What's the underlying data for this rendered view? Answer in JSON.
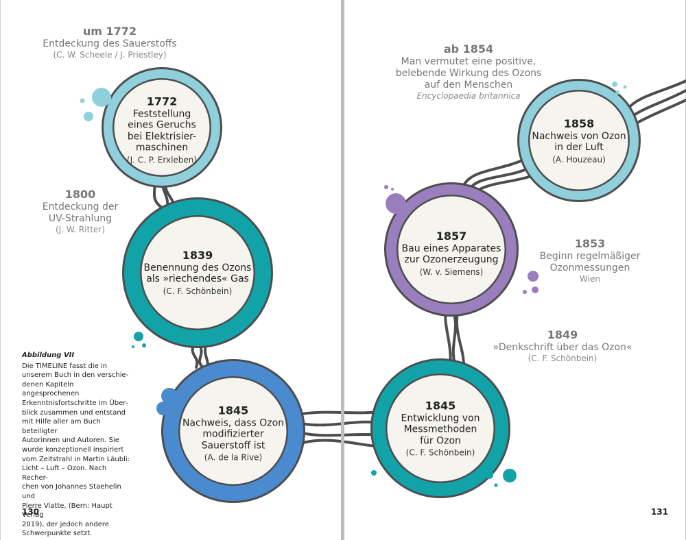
{
  "left_page": {
    "number": "130",
    "caption": {
      "title": "Abbildung VII",
      "lines": [
        "Die TIMELINE fasst die in",
        "unserem Buch in den verschie-",
        "denen Kapiteln angesprochenen",
        "Erkenntnisfortschritte im Über-",
        "blick zusammen und entstand",
        "mit Hilfe aller am Buch beteiligter",
        "Autorinnen und Autoren. Sie",
        "wurde konzeptionell inspiriert",
        "vom Zeitstrahl in Martin Läubli:",
        "Licht – Luft – Ozon. Nach Recher-",
        "chen von Johannes Staehelin und",
        "Pierre Viatte, (Bern: Haupt Verlag",
        "2019), der jedoch andere",
        "Schwerpunkte setzt."
      ]
    },
    "notes": [
      {
        "year": "um 1772",
        "text": [
          "Entdeckung des Sauerstoffs"
        ],
        "source": "(C. W. Scheele / J. Priestley)"
      },
      {
        "year": "1800",
        "text": [
          "Entdeckung der",
          "UV-Strahlung"
        ],
        "source": "(J. W. Ritter)"
      }
    ],
    "nodes": [
      {
        "year": "1772",
        "text": [
          "Feststellung",
          "eines Geruchs",
          "bei Elektrisier-",
          "maschinen"
        ],
        "source": "(J. C. P. Erxleben)",
        "color": "#8fd0dc"
      },
      {
        "year": "1839",
        "text": [
          "Benennung des Ozons",
          "als »riechendes« Gas"
        ],
        "source": "(C. F. Schönbein)",
        "color": "#12a3a8"
      },
      {
        "year": "1845",
        "text": [
          "Nachweis, dass Ozon",
          "modifizierter",
          "Sauerstoff ist"
        ],
        "source": "(A. de la Rive)",
        "color": "#4a8bd0"
      }
    ]
  },
  "right_page": {
    "number": "131",
    "notes": [
      {
        "year": "ab 1854",
        "text": [
          "Man vermutet eine positive,",
          "belebende Wirkung des Ozons",
          "auf den Menschen"
        ],
        "source": "Encyclopaedia britannica"
      },
      {
        "year": "1853",
        "text": [
          "Beginn regelmäßiger",
          "Ozonmessungen"
        ],
        "source": "Wien"
      },
      {
        "year": "1849",
        "text": [
          "»Denkschrift über das Ozon«"
        ],
        "source": "(C. F. Schönbein)"
      }
    ],
    "nodes": [
      {
        "year": "1858",
        "text": [
          "Nachweis von Ozon",
          "in der Luft"
        ],
        "source": "(A. Houzeau)",
        "color": "#8fd0dc"
      },
      {
        "year": "1857",
        "text": [
          "Bau eines Apparates",
          "zur Ozonerzeugung"
        ],
        "source": "(W. v. Siemens)",
        "color": "#9a7fbf"
      },
      {
        "year": "1845",
        "text": [
          "Entwicklung von",
          "Messmethoden",
          "für Ozon"
        ],
        "source": "(C. F. Schönbein)",
        "color": "#12a3a8"
      }
    ]
  },
  "colors": {
    "line": "#4d4d4d",
    "center": "#f6f4ee",
    "note_text": "#777777"
  }
}
